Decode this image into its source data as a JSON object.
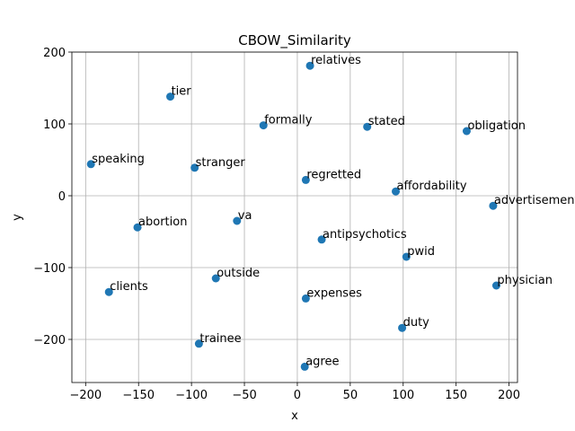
{
  "chart_data": {
    "type": "scatter",
    "title": "CBOW_Similarity",
    "xlabel": "x",
    "ylabel": "y",
    "xlim": [
      -213,
      208
    ],
    "ylim": [
      -260,
      200
    ],
    "xticks": [
      -200,
      -150,
      -100,
      -50,
      0,
      50,
      100,
      150,
      200
    ],
    "yticks": [
      -200,
      -100,
      0,
      100,
      200
    ],
    "xtick_labels": [
      "−200",
      "−150",
      "−100",
      "−50",
      "0",
      "50",
      "100",
      "150",
      "200"
    ],
    "ytick_labels": [
      "−200",
      "−100",
      "0",
      "100",
      "200"
    ],
    "grid": true,
    "point_color": "#1f77b4",
    "points": [
      {
        "label": "relatives",
        "x": 12,
        "y": 181
      },
      {
        "label": "tier",
        "x": -120,
        "y": 138
      },
      {
        "label": "formally",
        "x": -32,
        "y": 98
      },
      {
        "label": "stated",
        "x": 66,
        "y": 96
      },
      {
        "label": "obligation",
        "x": 160,
        "y": 90
      },
      {
        "label": "speaking",
        "x": -195,
        "y": 44
      },
      {
        "label": "stranger",
        "x": -97,
        "y": 39
      },
      {
        "label": "regretted",
        "x": 8,
        "y": 22
      },
      {
        "label": "affordability",
        "x": 93,
        "y": 6
      },
      {
        "label": "advertisement",
        "x": 185,
        "y": -14
      },
      {
        "label": "va",
        "x": -57,
        "y": -35
      },
      {
        "label": "abortion",
        "x": -151,
        "y": -44
      },
      {
        "label": "antipsychotics",
        "x": 23,
        "y": -61
      },
      {
        "label": "pwid",
        "x": 103,
        "y": -85
      },
      {
        "label": "outside",
        "x": -77,
        "y": -115
      },
      {
        "label": "physician",
        "x": 188,
        "y": -125
      },
      {
        "label": "clients",
        "x": -178,
        "y": -134
      },
      {
        "label": "expenses",
        "x": 8,
        "y": -143
      },
      {
        "label": "duty",
        "x": 99,
        "y": -184
      },
      {
        "label": "trainee",
        "x": -93,
        "y": -206
      },
      {
        "label": "agree",
        "x": 7,
        "y": -238
      }
    ]
  }
}
